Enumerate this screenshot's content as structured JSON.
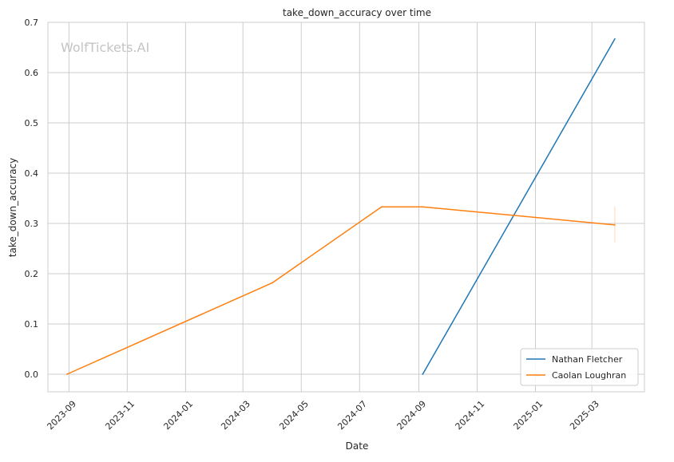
{
  "chart_data": {
    "type": "line",
    "title": "take_down_accuracy over time",
    "xlabel": "Date",
    "ylabel": "take_down_accuracy",
    "watermark": "WolfTickets.AI",
    "x_ticks": [
      "2023-09",
      "2023-11",
      "2024-01",
      "2024-03",
      "2024-05",
      "2024-07",
      "2024-09",
      "2024-11",
      "2025-01",
      "2025-03"
    ],
    "y_ticks": [
      "0.0",
      "0.1",
      "0.2",
      "0.3",
      "0.4",
      "0.5",
      "0.6",
      "0.7"
    ],
    "xlim": [
      "2023-08-10",
      "2025-04-25"
    ],
    "ylim": [
      -0.035,
      0.7
    ],
    "grid": true,
    "legend_position": "bottom-right",
    "series": [
      {
        "name": "Nathan Fletcher",
        "color": "#1f77b4",
        "points": [
          {
            "x": "2024-09-05",
            "y": 0.0
          },
          {
            "x": "2025-03-25",
            "y": 0.667
          }
        ]
      },
      {
        "name": "Caolan Loughran",
        "color": "#ff7f0e",
        "points": [
          {
            "x": "2023-08-30",
            "y": 0.0
          },
          {
            "x": "2024-04-01",
            "y": 0.182
          },
          {
            "x": "2024-07-24",
            "y": 0.333
          },
          {
            "x": "2024-09-05",
            "y": 0.333
          },
          {
            "x": "2025-03-25",
            "y": 0.297
          }
        ],
        "error_bar": {
          "x": "2025-03-25",
          "low": 0.262,
          "high": 0.333
        }
      }
    ]
  }
}
